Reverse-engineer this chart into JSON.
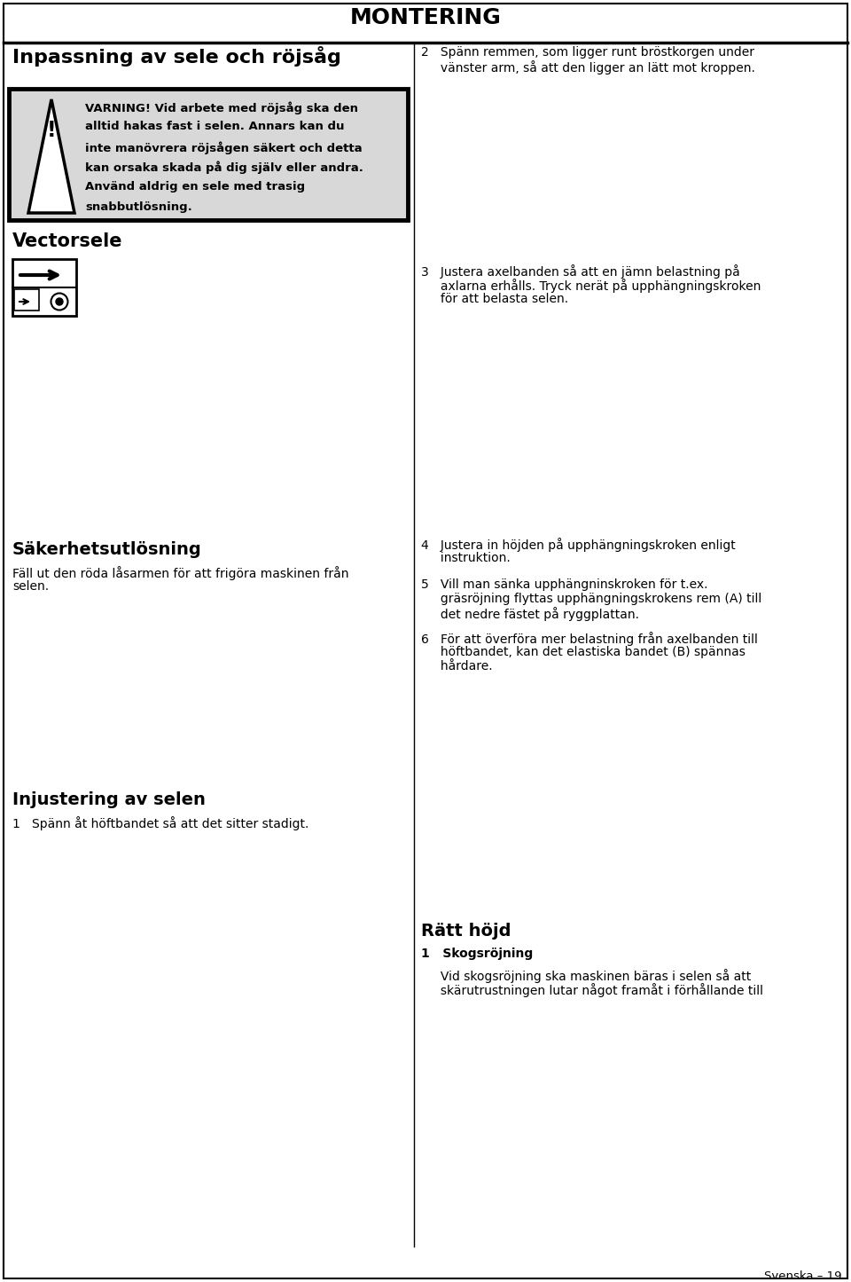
{
  "page_title": "MONTERING",
  "section_left_title": "Inpassning av sele och röjsåg",
  "warn_lines": [
    "VARNING! Vid arbete med röjsåg ska den",
    "alltid hakas fast i selen. Annars kan du",
    "inte manövrera röjsågen säkert och detta",
    "kan orsaka skada på dig själv eller andra.",
    "Använd aldrig en sele med trasig",
    "snabbutlösning."
  ],
  "vectorsele_title": "Vectorsele",
  "safety_title": "Säkerhetsutlösning",
  "safety_line1": "Fäll ut den röda låsarmen för att frigöra maskinen från",
  "safety_line2": "selen.",
  "adjust_title": "Injustering av selen",
  "adjust_step1_a": "1   Spänn åt höftbandet så att det sitter stadigt.",
  "step2_line1": "2   Spänn remmen, som ligger runt bröstkorgen under",
  "step2_line2": "     vänster arm, så att den ligger an lätt mot kroppen.",
  "step3_line1": "3   Justera axelbanden så att en jämn belastning på",
  "step3_line2": "     axlarna erhålls. Tryck nerät på upphängningskroken",
  "step3_line3": "     för att belasta selen.",
  "step4_line1": "4   Justera in höjden på upphängningskroken enligt",
  "step4_line2": "     instruktion.",
  "step5_line1": "5   Vill man sänka upphängninskroken för t.ex.",
  "step5_line2": "     gräsröjning flyttas upphängningskrokens rem (A) till",
  "step5_line3": "     det nedre fästet på ryggplattan.",
  "step6_line1": "6   För att överföra mer belastning från axelbanden till",
  "step6_line2": "     höftbandet, kan det elastiska bandet (B) spännas",
  "step6_line3": "     hårdare.",
  "ratt_hojd_title": "Rätt höjd",
  "ratt_hojd_sub": "Skogsröjning",
  "ratt_hojd_line1": "Vid skogsröjning ska maskinen bäras i selen så att",
  "ratt_hojd_line2": "skärutrustningen lutar något framåt i förhållande till",
  "footer": "Svenska – 19",
  "bg": "#ffffff",
  "warn_bg": "#d8d8d8",
  "img_bg": "#ffffff"
}
